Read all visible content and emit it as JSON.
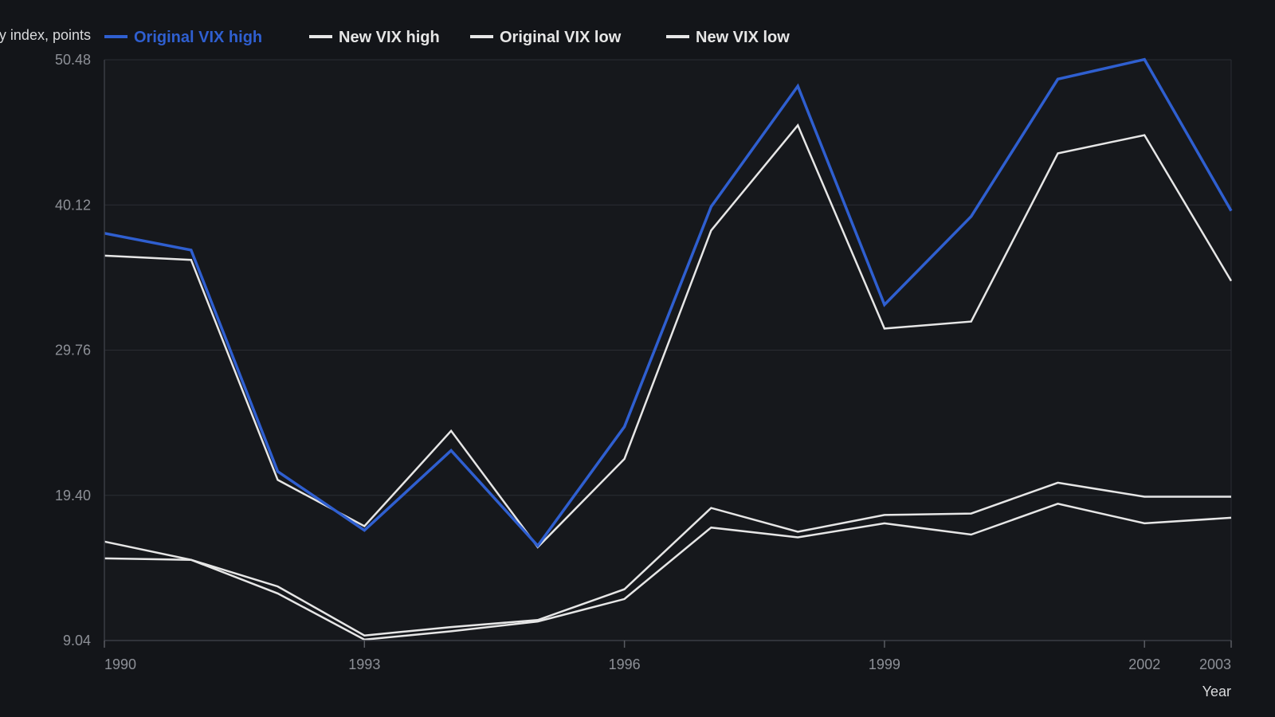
{
  "colors": {
    "background": "#131519",
    "grid": "#2a2d33",
    "axis_text": "#8d9097",
    "series_blue": "#2f5fd0",
    "series_white": "#e6e6e6"
  },
  "chart_data": {
    "type": "line",
    "ylabel": "y index, points",
    "xlabel": "Year",
    "ylim": [
      9.04,
      50.48
    ],
    "xlim": [
      1990,
      2003
    ],
    "yticks": [
      "50.48",
      "40.12",
      "29.76",
      "19.40",
      "9.04"
    ],
    "xticks": [
      "1990",
      "1993",
      "1996",
      "1999",
      "2002",
      "2003"
    ],
    "grid": true,
    "legend_position": "top",
    "x": [
      1990,
      1991,
      1992,
      1993,
      1994,
      1995,
      1996,
      1997,
      1998,
      1999,
      2000,
      2001,
      2002,
      2003
    ],
    "series": [
      {
        "name": "Original VIX high",
        "color": "#2f5fd0",
        "values": [
          38.1,
          36.9,
          21.1,
          16.9,
          22.6,
          15.8,
          24.3,
          40.0,
          48.6,
          33.0,
          39.3,
          49.1,
          50.5,
          39.7
        ]
      },
      {
        "name": "New VIX high",
        "color": "#e6e6e6",
        "values": [
          36.5,
          36.2,
          20.5,
          17.2,
          24.0,
          15.7,
          22.0,
          38.3,
          45.8,
          31.3,
          31.8,
          43.8,
          45.1,
          34.7
        ]
      },
      {
        "name": "Original VIX low",
        "color": "#e6e6e6",
        "values": [
          16.1,
          14.8,
          12.9,
          9.4,
          10.0,
          10.5,
          12.7,
          18.5,
          16.8,
          18.0,
          18.1,
          20.3,
          19.3,
          19.3
        ]
      },
      {
        "name": "New VIX low",
        "color": "#e6e6e6",
        "values": [
          14.9,
          14.8,
          12.4,
          9.1,
          9.7,
          10.4,
          12.0,
          17.1,
          16.4,
          17.4,
          16.6,
          18.8,
          17.4,
          17.8
        ]
      }
    ]
  }
}
